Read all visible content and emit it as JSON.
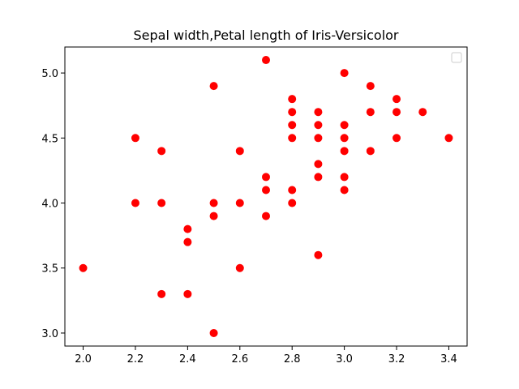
{
  "chart_data": {
    "type": "scatter",
    "title": "Sepal width,Petal length of Iris-Versicolor",
    "xlabel": "",
    "ylabel": "",
    "xlim": [
      1.93,
      3.47
    ],
    "ylim": [
      2.9,
      5.2
    ],
    "xticks": [
      2.0,
      2.2,
      2.4,
      2.6,
      2.8,
      3.0,
      3.2,
      3.4
    ],
    "xtick_labels": [
      "2.0",
      "2.2",
      "2.4",
      "2.6",
      "2.8",
      "3.0",
      "3.2",
      "3.4"
    ],
    "yticks": [
      3.0,
      3.5,
      4.0,
      4.5,
      5.0
    ],
    "ytick_labels": [
      "3.0",
      "3.5",
      "4.0",
      "4.5",
      "5.0"
    ],
    "grid": false,
    "legend": {
      "location": "upper right",
      "entries": []
    },
    "marker_color": "#ff0000",
    "series": [
      {
        "x": [
          2.0,
          2.2,
          2.2,
          2.3,
          2.3,
          2.3,
          2.4,
          2.4,
          2.4,
          2.5,
          2.5,
          2.5,
          2.5,
          2.6,
          2.6,
          2.6,
          2.7,
          2.7,
          2.7,
          2.7,
          2.8,
          2.8,
          2.8,
          2.8,
          2.8,
          2.8,
          2.9,
          2.9,
          2.9,
          2.9,
          2.9,
          2.9,
          3.0,
          3.0,
          3.0,
          3.0,
          3.0,
          3.0,
          3.1,
          3.1,
          3.1,
          3.2,
          3.2,
          3.2,
          3.3,
          3.4
        ],
        "y": [
          3.5,
          4.5,
          4.0,
          4.4,
          4.0,
          3.3,
          3.8,
          3.7,
          3.3,
          4.9,
          4.0,
          3.9,
          3.0,
          4.4,
          4.0,
          3.5,
          5.1,
          4.2,
          4.1,
          3.9,
          4.8,
          4.7,
          4.6,
          4.5,
          4.1,
          4.0,
          4.7,
          4.6,
          4.5,
          4.3,
          4.2,
          3.6,
          5.0,
          4.6,
          4.5,
          4.4,
          4.2,
          4.1,
          4.9,
          4.7,
          4.4,
          4.8,
          4.7,
          4.5,
          4.7,
          4.5
        ]
      }
    ]
  }
}
